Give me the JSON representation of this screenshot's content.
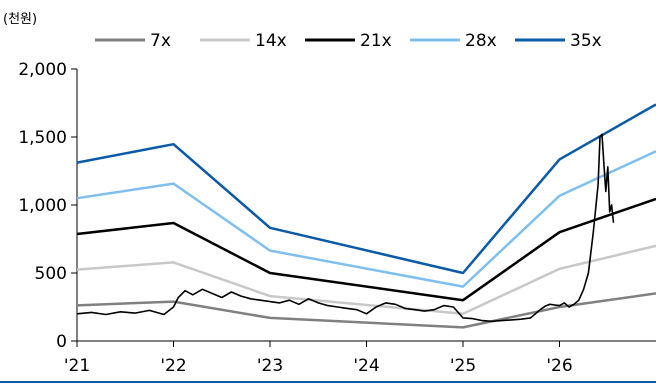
{
  "chart_data": {
    "type": "line",
    "unit_label": "(천원)",
    "y_ticks": [
      "0",
      "500",
      "1,000",
      "1,500",
      "2,000"
    ],
    "y_tick_values": [
      0,
      500,
      1000,
      1500,
      2000
    ],
    "ylim": [
      0,
      2000
    ],
    "x_ticks": [
      "'21",
      "'22",
      "'23",
      "'24",
      "'25",
      "'26"
    ],
    "x_tick_values": [
      2021,
      2022,
      2023,
      2024,
      2025,
      2026
    ],
    "xlim": [
      2021,
      2027
    ],
    "grid": false,
    "legend": "top",
    "series": [
      {
        "name": "7x",
        "color": "#808080",
        "x": [
          2021,
          2022,
          2023,
          2025,
          2026,
          2027
        ],
        "values": [
          262,
          290,
          170,
          100,
          250,
          350
        ]
      },
      {
        "name": "14x",
        "color": "#c8c8c8",
        "x": [
          2021,
          2022,
          2023,
          2025,
          2026,
          2027
        ],
        "values": [
          525,
          578,
          330,
          200,
          530,
          700
        ]
      },
      {
        "name": "21x",
        "color": "#000000",
        "x": [
          2021,
          2022,
          2023,
          2025,
          2026,
          2027
        ],
        "values": [
          787,
          868,
          500,
          300,
          800,
          1045
        ]
      },
      {
        "name": "28x",
        "color": "#7fbfef",
        "x": [
          2021,
          2022,
          2023,
          2025,
          2026,
          2027
        ],
        "values": [
          1050,
          1157,
          665,
          400,
          1068,
          1395
        ]
      },
      {
        "name": "35x",
        "color": "#0a5aa8",
        "x": [
          2021,
          2022,
          2023,
          2025,
          2026,
          2027
        ],
        "values": [
          1312,
          1447,
          832,
          500,
          1335,
          1740
        ]
      }
    ],
    "price": {
      "color": "#000000",
      "x": [
        2021.0,
        2021.15,
        2021.3,
        2021.45,
        2021.6,
        2021.75,
        2021.9,
        2022.0,
        2022.05,
        2022.12,
        2022.2,
        2022.3,
        2022.4,
        2022.5,
        2022.6,
        2022.7,
        2022.8,
        2022.9,
        2023.0,
        2023.1,
        2023.2,
        2023.3,
        2023.4,
        2023.5,
        2023.6,
        2023.7,
        2023.8,
        2023.9,
        2024.0,
        2024.1,
        2024.2,
        2024.3,
        2024.4,
        2024.5,
        2024.6,
        2024.7,
        2024.8,
        2024.9,
        2025.0,
        2025.1,
        2025.2,
        2025.3,
        2025.4,
        2025.5,
        2025.6,
        2025.7,
        2025.75,
        2025.8,
        2025.85,
        2025.9,
        2025.95,
        2026.0,
        2026.05,
        2026.1,
        2026.15,
        2026.2,
        2026.25,
        2026.3,
        2026.35,
        2026.4,
        2026.42,
        2026.44,
        2026.46,
        2026.48,
        2026.5,
        2026.52,
        2026.54,
        2026.56
      ],
      "values": [
        200,
        210,
        195,
        215,
        205,
        225,
        195,
        250,
        320,
        370,
        340,
        380,
        350,
        320,
        360,
        330,
        310,
        300,
        290,
        280,
        300,
        270,
        310,
        280,
        260,
        250,
        240,
        230,
        200,
        250,
        280,
        270,
        240,
        230,
        220,
        230,
        260,
        250,
        170,
        165,
        150,
        145,
        150,
        155,
        160,
        170,
        200,
        230,
        255,
        270,
        265,
        260,
        280,
        250,
        270,
        300,
        380,
        500,
        800,
        1150,
        1500,
        1520,
        1300,
        1100,
        1280,
        950,
        1000,
        870
      ]
    }
  }
}
